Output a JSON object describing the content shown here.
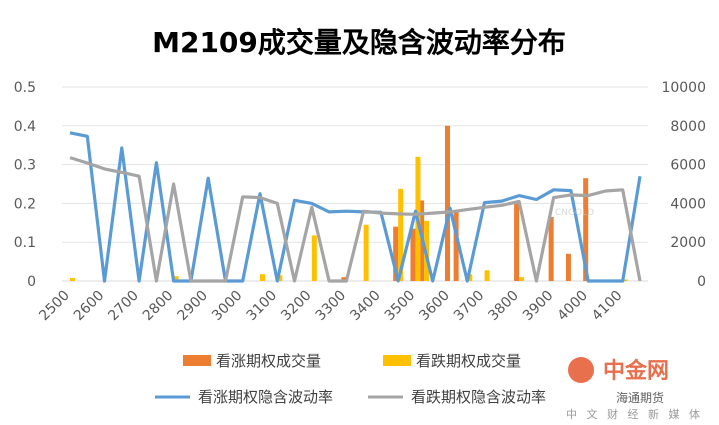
{
  "chart_data": {
    "type": "bar",
    "title": "M2109成交量及隐含波动率分布",
    "x": [
      2500,
      2550,
      2600,
      2650,
      2700,
      2750,
      2800,
      2850,
      2900,
      2950,
      3000,
      3050,
      3100,
      3150,
      3200,
      3250,
      3300,
      3350,
      3400,
      3450,
      3500,
      3550,
      3600,
      3650,
      3700,
      3750,
      3800,
      3850,
      3900,
      3950,
      4000,
      4050,
      4100,
      4150
    ],
    "x_tick_labels": [
      "2500",
      "2600",
      "2700",
      "2800",
      "2900",
      "3000",
      "3100",
      "3200",
      "3300",
      "3400",
      "3500",
      "3600",
      "3700",
      "3800",
      "3900",
      "4000",
      "4100"
    ],
    "y_left": {
      "ticks": [
        "0",
        "0.1",
        "0.2",
        "0.3",
        "0.4",
        "0.5"
      ],
      "lim": [
        0,
        0.5
      ]
    },
    "y_right": {
      "ticks": [
        "0",
        "2000",
        "4000",
        "6000",
        "8000",
        "10000"
      ],
      "lim": [
        0,
        10000
      ]
    },
    "grid": true,
    "legend_position": "bottom",
    "series": [
      {
        "name": "看涨期权成交量",
        "kind": "bar",
        "axis": "right",
        "color": "#ED7D31",
        "values": {
          "3300": 200,
          "3450": 2800,
          "3500": 2700,
          "3525": 4150,
          "3600": 8000,
          "3625": 3600,
          "3800": 4100,
          "3900": 3300,
          "3950": 1400,
          "4000": 5300
        }
      },
      {
        "name": "看跌期权成交量",
        "kind": "bar",
        "axis": "right",
        "color": "#FFC000",
        "values": {
          "2500": 150,
          "2800": 250,
          "3050": 350,
          "3100": 300,
          "3200": 2350,
          "3350": 2900,
          "3450": 4750,
          "3500": 6400,
          "3525": 3100,
          "3650": 350,
          "3700": 550,
          "3800": 200,
          "4100": 80
        }
      },
      {
        "name": "看涨期权隐含波动率",
        "kind": "line",
        "axis": "left",
        "color": "#5B9BD5",
        "values": [
          0.382,
          0.373,
          0,
          0.343,
          0,
          0.305,
          0,
          0,
          0.265,
          0,
          0,
          0.225,
          0,
          0.208,
          0.2,
          0.178,
          0.18,
          0.178,
          0.177,
          0,
          0.18,
          0,
          0.188,
          0,
          0.202,
          0.206,
          0.22,
          0.21,
          0.235,
          0.233,
          0,
          0,
          0,
          0.27
        ]
      },
      {
        "name": "看跌期权隐含波动率",
        "kind": "line",
        "axis": "left",
        "color": "#A5A5A5",
        "values": [
          0.318,
          0.304,
          0.289,
          0.28,
          0.27,
          0,
          0.25,
          0,
          0,
          0,
          0.217,
          0.215,
          0.2,
          0,
          0.19,
          0,
          0,
          0.18,
          0.175,
          0.173,
          0.172,
          0.175,
          0.178,
          0.184,
          0.19,
          0.195,
          0.205,
          0,
          0.215,
          0.222,
          0.22,
          0.232,
          0.235,
          0
        ]
      }
    ]
  },
  "watermark": {
    "logo_text": "中金网",
    "subtitle": "中 文 财 经 新 媒 体",
    "brand": "海通期货",
    "faint_text": "CNGOLD"
  }
}
